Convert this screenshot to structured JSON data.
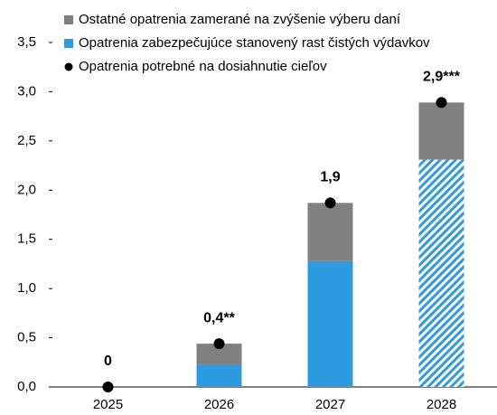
{
  "chart_data": {
    "type": "bar",
    "categories": [
      "2025",
      "2026",
      "2027",
      "2028"
    ],
    "series": [
      {
        "name": "Ostatné opatrenia zamerané na zvýšenie výberu daní",
        "color": "#808080",
        "values": [
          0,
          0.21,
          0.59,
          0.58
        ]
      },
      {
        "name": "Opatrenia zabezpečujúce stanovený rast čistých výdavkov",
        "color": "#2e9be0",
        "values": [
          0,
          0.23,
          1.28,
          2.31
        ],
        "hatched": [
          false,
          false,
          false,
          true
        ]
      },
      {
        "name": "Opatrenia potrebné na dosiahnutie cieľov",
        "type": "scatter",
        "color": "#000000",
        "values": [
          0,
          0.44,
          1.87,
          2.89
        ],
        "value_labels": [
          "0",
          "0,4**",
          "1,9",
          "2,9***"
        ]
      }
    ],
    "ylim": [
      0,
      3.5
    ],
    "yticks": [
      {
        "value": 0,
        "label": "0,0"
      },
      {
        "value": 0.5,
        "label": "0,5"
      },
      {
        "value": 1,
        "label": "1,0"
      },
      {
        "value": 1.5,
        "label": "1,5"
      },
      {
        "value": 2,
        "label": "2,0"
      },
      {
        "value": 2.5,
        "label": "2,5"
      },
      {
        "value": 3,
        "label": "3,0"
      },
      {
        "value": 3.5,
        "label": "3,5"
      }
    ]
  }
}
